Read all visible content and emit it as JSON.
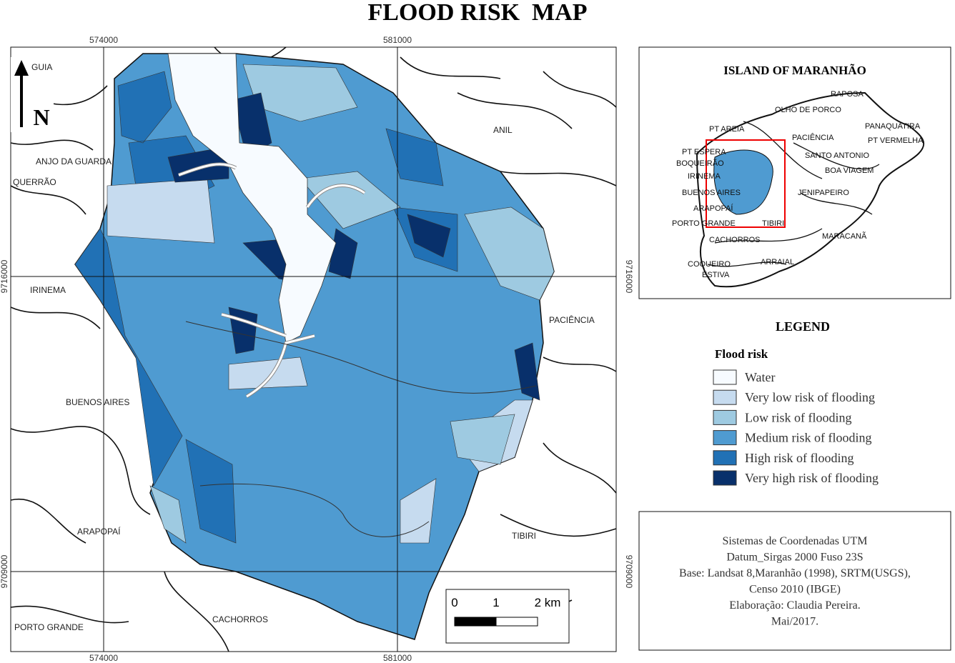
{
  "title": "FLOOD RISK  MAP",
  "grid": {
    "x_top": [
      "574000",
      "581000"
    ],
    "x_bottom": [
      "574000",
      "581000"
    ],
    "y_left": [
      "9716000",
      "9709000"
    ],
    "y_right": [
      "9716000",
      "9709000"
    ]
  },
  "north": "N",
  "places": [
    "GUIA",
    "ANJO DA GUARDA",
    "QUERRÃO",
    "IRINEMA",
    "BUENOS AIRES",
    "ARAPOPAÍ",
    "PORTO GRANDE",
    "CACHORROS",
    "TIBIRI",
    "PACIÊNCIA",
    "ANIL"
  ],
  "scale": [
    "0",
    "1",
    "2 km"
  ],
  "inset": {
    "title": "ISLAND OF MARANHÃO",
    "places": [
      "RAPOSA",
      "OLHO DE PORCO",
      "PT AREIA",
      "PANAQUATIRA",
      "PT VERMELHA",
      "PACIÊNCIA",
      "SANTO ANTONIO",
      "PT ESPERA",
      "BOQUEIRÃO",
      "IRINEMA",
      "BOA VIAGEM",
      "BUENOS AIRES",
      "JENIPAPEIRO",
      "ARAPOPAÍ",
      "PORTO GRANDE",
      "TIBIRI",
      "MARACANÃ",
      "CACHORROS",
      "COQUEIRO",
      "ESTIVA",
      "ARRAIAL"
    ]
  },
  "legend": {
    "title": "LEGEND",
    "subtitle": "Flood risk",
    "items": [
      {
        "name": "Water",
        "color": "#f7fbff"
      },
      {
        "name": "Very low risk of flooding",
        "color": "#c6dbef"
      },
      {
        "name": "Low risk of flooding",
        "color": "#9ecae1"
      },
      {
        "name": "Medium risk of flooding",
        "color": "#4f9bd1"
      },
      {
        "name": "High risk of flooding",
        "color": "#2171b5"
      },
      {
        "name": "Very high risk of flooding",
        "color": "#08306b"
      }
    ]
  },
  "info": [
    "Sistemas de Coordenadas UTM",
    "Datum_Sirgas 2000 Fuso 23S",
    "Base: Landsat 8,Maranhão (1998), SRTM(USGS),",
    "Censo 2010 (IBGE)",
    "Elaboração: Claudia Pereira.",
    "Mai/2017."
  ]
}
